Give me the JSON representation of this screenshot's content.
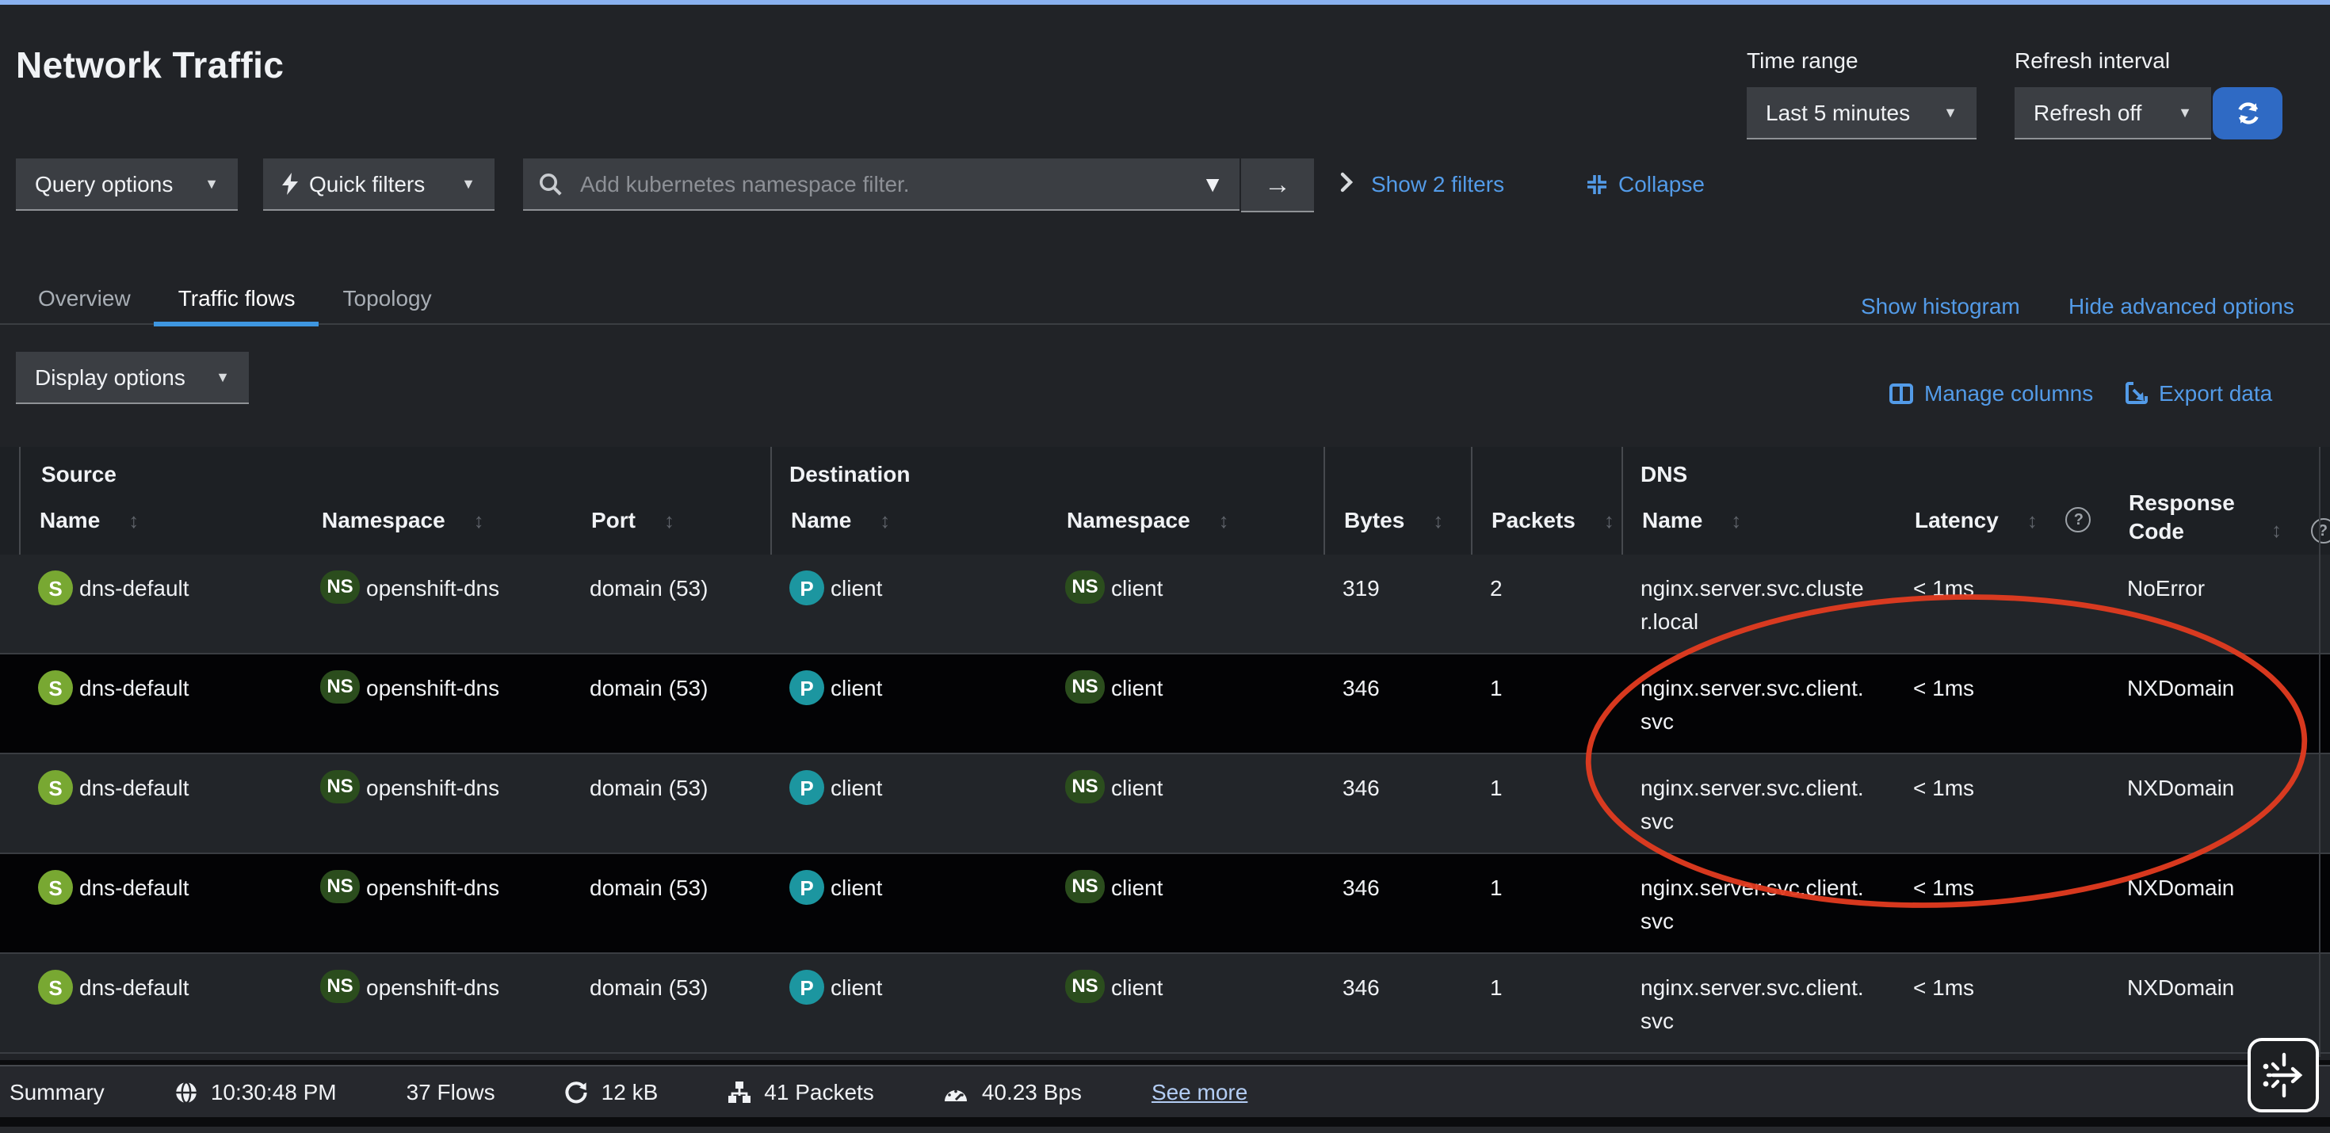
{
  "header": {
    "title": "Network Traffic",
    "time_range_label": "Time range",
    "time_range_value": "Last 5 minutes",
    "refresh_label": "Refresh interval",
    "refresh_value": "Refresh off"
  },
  "filter_bar": {
    "query_options": "Query options",
    "quick_filters": "Quick filters",
    "search_placeholder": "Add kubernetes namespace filter.",
    "show_filters": "Show 2 filters",
    "collapse": "Collapse"
  },
  "tabs": {
    "items": [
      {
        "label": "Overview",
        "active": false
      },
      {
        "label": "Traffic flows",
        "active": true
      },
      {
        "label": "Topology",
        "active": false
      }
    ],
    "show_histogram": "Show histogram",
    "hide_advanced": "Hide advanced options"
  },
  "toolbar": {
    "display_options": "Display options",
    "manage_columns": "Manage columns",
    "export_data": "Export data"
  },
  "table": {
    "groups": [
      {
        "label": "Source"
      },
      {
        "label": "Destination"
      },
      {
        "label": "DNS"
      }
    ],
    "columns": [
      {
        "label": "Name",
        "sortable": true
      },
      {
        "label": "Namespace",
        "sortable": true
      },
      {
        "label": "Port",
        "sortable": true
      },
      {
        "label": "Name",
        "sortable": true
      },
      {
        "label": "Namespace",
        "sortable": true
      },
      {
        "label": "Bytes",
        "sortable": true,
        "standalone": true
      },
      {
        "label": "Packets",
        "sortable": true,
        "standalone": true
      },
      {
        "label": "Name",
        "sortable": true
      },
      {
        "label": "Latency",
        "sortable": true,
        "help": true
      },
      {
        "label": "Response Code",
        "sortable": true,
        "help": true
      }
    ],
    "rows": [
      {
        "src_badge": "S",
        "src_name": "dns-default",
        "src_ns_badge": "NS",
        "src_ns": "openshift-dns",
        "port": "domain (53)",
        "dst_badge": "P",
        "dst_name": "client",
        "dst_ns_badge": "NS",
        "dst_ns": "client",
        "bytes": "319",
        "packets": "2",
        "dns_name": "nginx.server.svc.cluster.local",
        "dns_latency": "< 1ms",
        "dns_rcode": "NoError"
      },
      {
        "src_badge": "S",
        "src_name": "dns-default",
        "src_ns_badge": "NS",
        "src_ns": "openshift-dns",
        "port": "domain (53)",
        "dst_badge": "P",
        "dst_name": "client",
        "dst_ns_badge": "NS",
        "dst_ns": "client",
        "bytes": "346",
        "packets": "1",
        "dns_name": "nginx.server.svc.client.svc",
        "dns_latency": "< 1ms",
        "dns_rcode": "NXDomain"
      },
      {
        "src_badge": "S",
        "src_name": "dns-default",
        "src_ns_badge": "NS",
        "src_ns": "openshift-dns",
        "port": "domain (53)",
        "dst_badge": "P",
        "dst_name": "client",
        "dst_ns_badge": "NS",
        "dst_ns": "client",
        "bytes": "346",
        "packets": "1",
        "dns_name": "nginx.server.svc.client.svc",
        "dns_latency": "< 1ms",
        "dns_rcode": "NXDomain"
      },
      {
        "src_badge": "S",
        "src_name": "dns-default",
        "src_ns_badge": "NS",
        "src_ns": "openshift-dns",
        "port": "domain (53)",
        "dst_badge": "P",
        "dst_name": "client",
        "dst_ns_badge": "NS",
        "dst_ns": "client",
        "bytes": "346",
        "packets": "1",
        "dns_name": "nginx.server.svc.client.svc",
        "dns_latency": "< 1ms",
        "dns_rcode": "NXDomain"
      },
      {
        "src_badge": "S",
        "src_name": "dns-default",
        "src_ns_badge": "NS",
        "src_ns": "openshift-dns",
        "port": "domain (53)",
        "dst_badge": "P",
        "dst_name": "client",
        "dst_ns_badge": "NS",
        "dst_ns": "client",
        "bytes": "346",
        "packets": "1",
        "dns_name": "nginx.server.svc.client.svc",
        "dns_latency": "< 1ms",
        "dns_rcode": "NXDomain"
      }
    ]
  },
  "summary": {
    "label": "Summary",
    "time": "10:30:48 PM",
    "flows": "37 Flows",
    "volume": "12 kB",
    "packets": "41 Packets",
    "rate": "40.23 Bps",
    "see_more": "See more"
  },
  "colors": {
    "accent_link": "#539be8",
    "top_bar": "#8ab1ef",
    "refresh_button": "#2f6ac4",
    "badge_service": "#78a832",
    "badge_namespace": "#2b4d1d",
    "badge_pod": "#1c96a0",
    "annotation_red": "#e33b20",
    "tab_underline": "#3e96e0"
  }
}
